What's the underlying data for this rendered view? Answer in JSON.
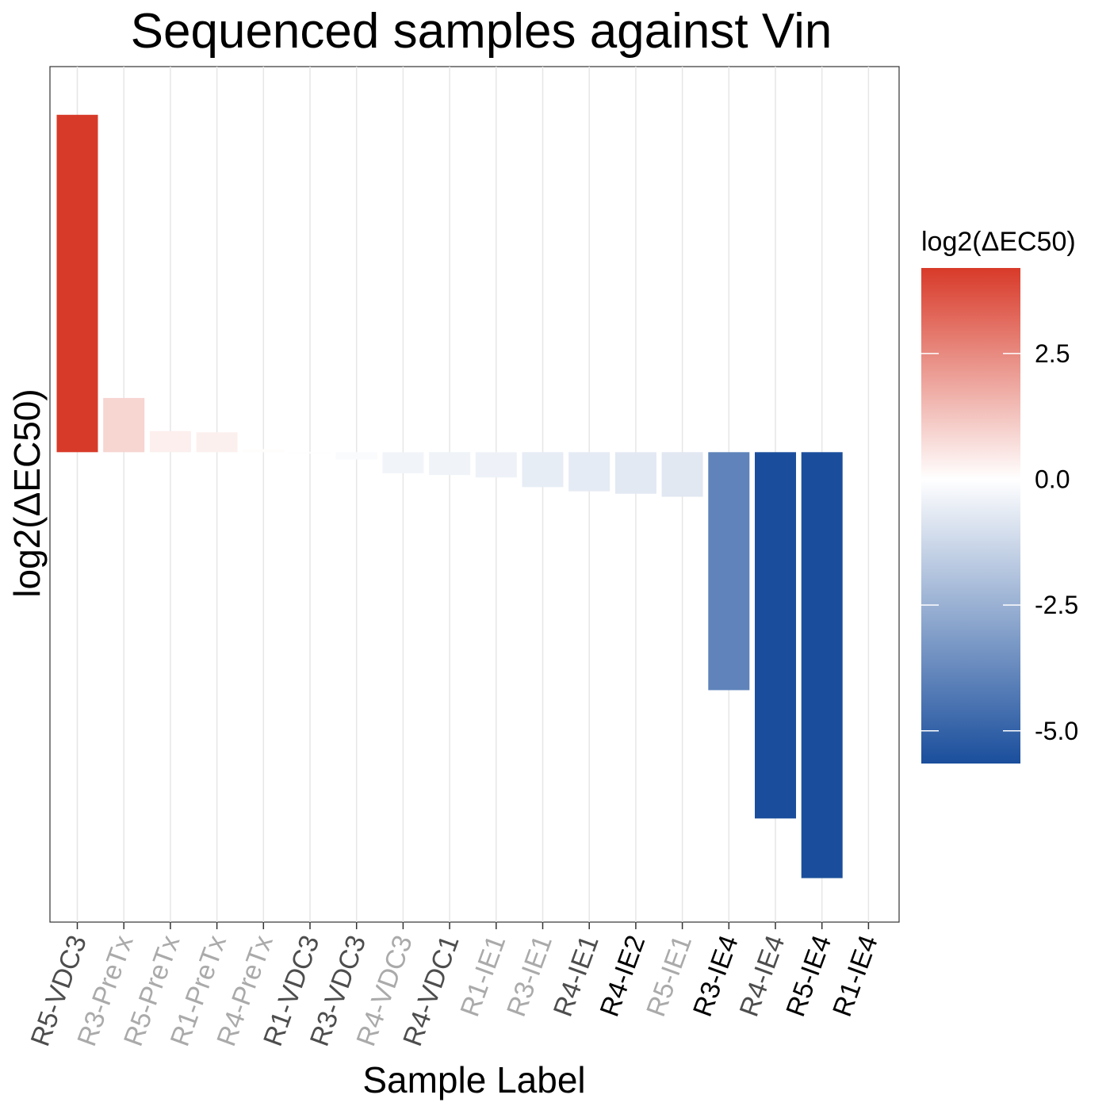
{
  "chart_data": {
    "type": "bar",
    "title": "Sequenced samples against Vin",
    "xlabel": "Sample Label",
    "ylabel": "log2(ΔEC50)",
    "categories": [
      "R5-VDC3",
      "R3-PreTx",
      "R5-PreTx",
      "R1-PreTx",
      "R4-PreTx",
      "R1-VDC3",
      "R3-VDC3",
      "R4-VDC3",
      "R4-VDC1",
      "R1-IE1",
      "R3-IE1",
      "R4-IE1",
      "R4-IE2",
      "R5-IE1",
      "R3-IE4",
      "R4-IE4",
      "R5-IE4",
      "R1-IE4"
    ],
    "values": [
      5.6,
      0.9,
      0.35,
      0.33,
      0.05,
      -0.02,
      -0.12,
      -0.35,
      -0.38,
      -0.42,
      -0.58,
      -0.65,
      -0.69,
      -0.74,
      -3.95,
      -6.08,
      -7.07,
      0.0
    ],
    "category_label_colors": [
      "#4d4d4d",
      "#aaaaaa",
      "#aaaaaa",
      "#aaaaaa",
      "#aaaaaa",
      "#4d4d4d",
      "#4d4d4d",
      "#aaaaaa",
      "#4d4d4d",
      "#aaaaaa",
      "#aaaaaa",
      "#4d4d4d",
      "#000000",
      "#aaaaaa",
      "#000000",
      "#4d4d4d",
      "#000000",
      "#000000"
    ],
    "ylim": [
      -7.8,
      6.4
    ],
    "y_ticks_shown": false,
    "grid": "vertical major lines only",
    "legend": {
      "title": "log2(ΔEC50)",
      "position": "right",
      "type": "colorbar",
      "ticks": [
        2.5,
        0.0,
        -2.5,
        -5.0
      ],
      "tick_labels": [
        "2.5",
        "0.0",
        "-2.5",
        "-5.0"
      ],
      "range": [
        -5.65,
        4.2
      ],
      "colors": {
        "low": "#1a4e9c",
        "mid": "#ffffff",
        "high": "#d83a29"
      }
    }
  }
}
